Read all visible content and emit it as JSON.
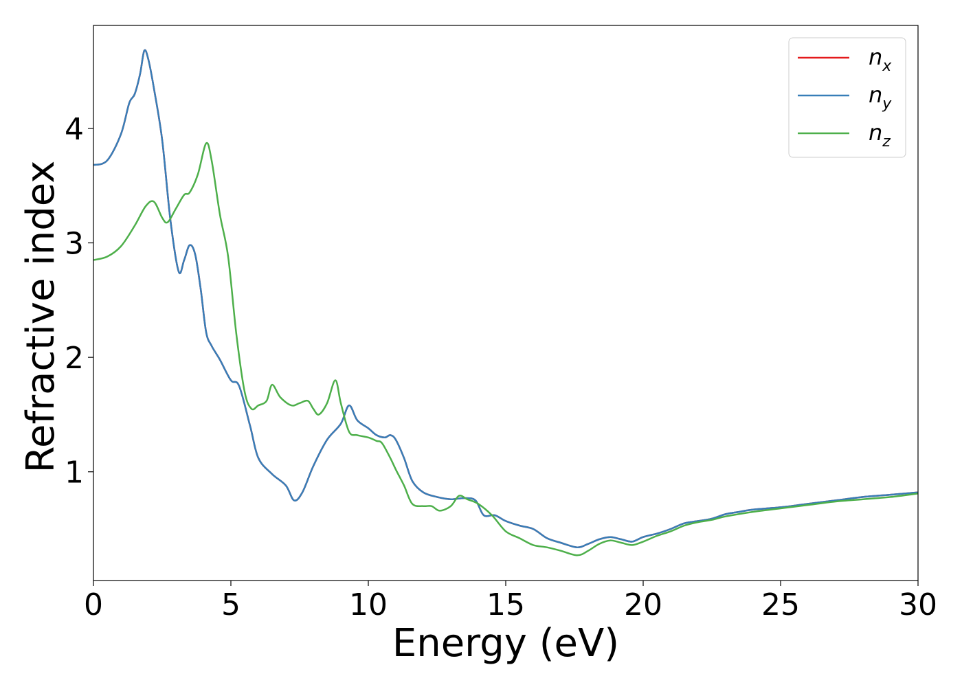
{
  "chart_data": {
    "type": "line",
    "title": "",
    "xlabel": "Energy (eV)",
    "ylabel": "Refractive index",
    "xlim": [
      0,
      30
    ],
    "ylim": [
      0.05,
      4.9
    ],
    "xticks": [
      0,
      5,
      10,
      15,
      20,
      25,
      30
    ],
    "yticks": [
      1,
      2,
      3,
      4
    ],
    "grid": false,
    "legend_position": "top-right",
    "series": [
      {
        "name": "n_x",
        "legend_base": "n",
        "legend_sub": "x",
        "color": "#e41a1c",
        "x": [
          0,
          0.5,
          1.0,
          1.3,
          1.5,
          1.7,
          1.85,
          2.0,
          2.2,
          2.5,
          2.8,
          3.1,
          3.3,
          3.5,
          3.7,
          3.9,
          4.1,
          4.3,
          4.6,
          5.0,
          5.3,
          5.7,
          6.0,
          6.5,
          7.0,
          7.3,
          7.6,
          8.0,
          8.5,
          9.0,
          9.3,
          9.6,
          10.0,
          10.3,
          10.6,
          10.8,
          11.0,
          11.3,
          11.6,
          12.0,
          12.5,
          13.0,
          13.5,
          13.9,
          14.2,
          14.6,
          15.0,
          15.5,
          16.0,
          16.5,
          17.0,
          17.6,
          18.0,
          18.4,
          18.8,
          19.2,
          19.6,
          20.0,
          20.5,
          21.0,
          21.5,
          22.0,
          22.5,
          23.0,
          23.5,
          24.0,
          25.0,
          26.0,
          27.0,
          28.0,
          29.0,
          30.0
        ],
        "y": [
          3.68,
          3.72,
          3.95,
          4.22,
          4.3,
          4.48,
          4.68,
          4.6,
          4.35,
          3.9,
          3.2,
          2.75,
          2.85,
          2.98,
          2.9,
          2.6,
          2.22,
          2.1,
          1.98,
          1.8,
          1.75,
          1.4,
          1.12,
          0.98,
          0.88,
          0.75,
          0.82,
          1.05,
          1.28,
          1.42,
          1.58,
          1.45,
          1.38,
          1.32,
          1.3,
          1.32,
          1.28,
          1.12,
          0.92,
          0.82,
          0.78,
          0.76,
          0.77,
          0.75,
          0.62,
          0.62,
          0.57,
          0.53,
          0.5,
          0.42,
          0.38,
          0.34,
          0.37,
          0.41,
          0.43,
          0.41,
          0.39,
          0.43,
          0.46,
          0.5,
          0.55,
          0.57,
          0.59,
          0.63,
          0.65,
          0.67,
          0.69,
          0.72,
          0.75,
          0.78,
          0.8,
          0.82
        ]
      },
      {
        "name": "n_y",
        "legend_base": "n",
        "legend_sub": "y",
        "color": "#377eb8",
        "x": [
          0,
          0.5,
          1.0,
          1.3,
          1.5,
          1.7,
          1.85,
          2.0,
          2.2,
          2.5,
          2.8,
          3.1,
          3.3,
          3.5,
          3.7,
          3.9,
          4.1,
          4.3,
          4.6,
          5.0,
          5.3,
          5.7,
          6.0,
          6.5,
          7.0,
          7.3,
          7.6,
          8.0,
          8.5,
          9.0,
          9.3,
          9.6,
          10.0,
          10.3,
          10.6,
          10.8,
          11.0,
          11.3,
          11.6,
          12.0,
          12.5,
          13.0,
          13.5,
          13.9,
          14.2,
          14.6,
          15.0,
          15.5,
          16.0,
          16.5,
          17.0,
          17.6,
          18.0,
          18.4,
          18.8,
          19.2,
          19.6,
          20.0,
          20.5,
          21.0,
          21.5,
          22.0,
          22.5,
          23.0,
          23.5,
          24.0,
          25.0,
          26.0,
          27.0,
          28.0,
          29.0,
          30.0
        ],
        "y": [
          3.68,
          3.72,
          3.95,
          4.22,
          4.3,
          4.48,
          4.68,
          4.6,
          4.35,
          3.9,
          3.2,
          2.75,
          2.85,
          2.98,
          2.9,
          2.6,
          2.22,
          2.1,
          1.98,
          1.8,
          1.75,
          1.4,
          1.12,
          0.98,
          0.88,
          0.75,
          0.82,
          1.05,
          1.28,
          1.42,
          1.58,
          1.45,
          1.38,
          1.32,
          1.3,
          1.32,
          1.28,
          1.12,
          0.92,
          0.82,
          0.78,
          0.76,
          0.77,
          0.75,
          0.62,
          0.62,
          0.57,
          0.53,
          0.5,
          0.42,
          0.38,
          0.34,
          0.37,
          0.41,
          0.43,
          0.41,
          0.39,
          0.43,
          0.46,
          0.5,
          0.55,
          0.57,
          0.59,
          0.63,
          0.65,
          0.67,
          0.69,
          0.72,
          0.75,
          0.78,
          0.8,
          0.82
        ]
      },
      {
        "name": "n_z",
        "legend_base": "n",
        "legend_sub": "z",
        "color": "#4daf4a",
        "x": [
          0,
          0.5,
          1.0,
          1.5,
          1.9,
          2.2,
          2.5,
          2.7,
          3.0,
          3.3,
          3.5,
          3.8,
          4.1,
          4.3,
          4.6,
          4.9,
          5.2,
          5.5,
          5.75,
          6.0,
          6.3,
          6.5,
          6.8,
          7.2,
          7.5,
          7.8,
          8.0,
          8.2,
          8.5,
          8.8,
          9.0,
          9.3,
          9.6,
          10.0,
          10.3,
          10.5,
          10.8,
          11.0,
          11.3,
          11.6,
          12.0,
          12.3,
          12.6,
          13.0,
          13.3,
          13.6,
          14.0,
          14.5,
          15.0,
          15.5,
          16.0,
          16.5,
          17.0,
          17.6,
          18.0,
          18.4,
          18.8,
          19.2,
          19.6,
          20.0,
          20.5,
          21.0,
          21.5,
          22.0,
          22.5,
          23.0,
          24.0,
          25.0,
          26.0,
          27.0,
          28.0,
          29.0,
          30.0
        ],
        "y": [
          2.85,
          2.88,
          2.97,
          3.15,
          3.32,
          3.36,
          3.22,
          3.18,
          3.3,
          3.42,
          3.44,
          3.6,
          3.87,
          3.72,
          3.25,
          2.88,
          2.2,
          1.7,
          1.55,
          1.58,
          1.62,
          1.76,
          1.65,
          1.58,
          1.6,
          1.62,
          1.55,
          1.5,
          1.6,
          1.8,
          1.6,
          1.35,
          1.32,
          1.3,
          1.27,
          1.25,
          1.12,
          1.02,
          0.88,
          0.72,
          0.7,
          0.7,
          0.66,
          0.7,
          0.79,
          0.76,
          0.72,
          0.62,
          0.48,
          0.42,
          0.36,
          0.34,
          0.31,
          0.27,
          0.31,
          0.37,
          0.4,
          0.38,
          0.36,
          0.39,
          0.44,
          0.48,
          0.53,
          0.56,
          0.58,
          0.61,
          0.65,
          0.68,
          0.71,
          0.74,
          0.76,
          0.78,
          0.81
        ]
      }
    ]
  }
}
